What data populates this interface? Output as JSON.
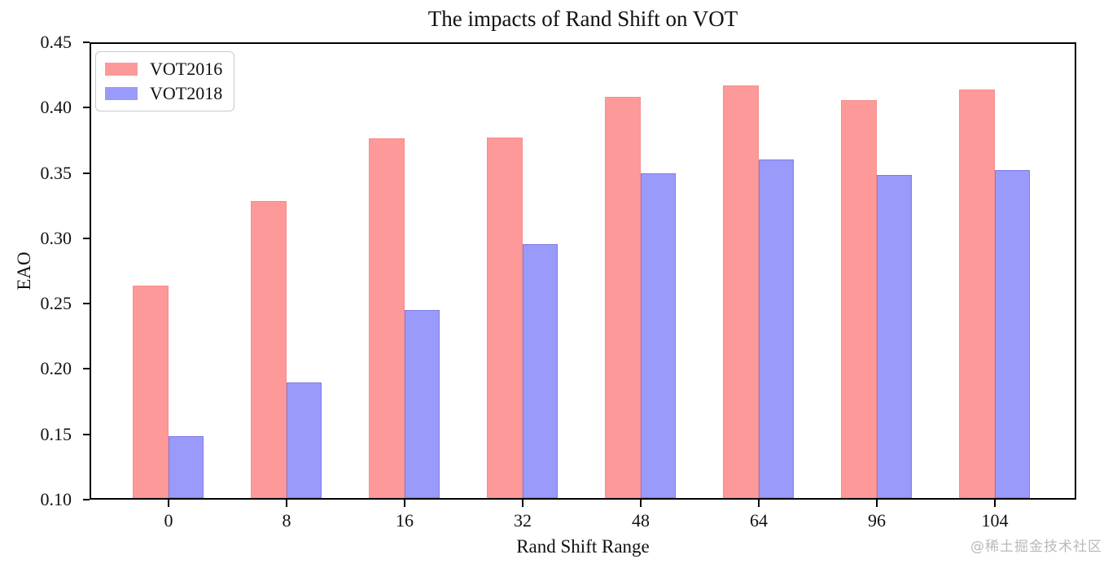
{
  "chart_data": {
    "type": "bar",
    "title": "The impacts of Rand Shift on VOT",
    "xlabel": "Rand Shift Range",
    "ylabel": "EAO",
    "categories": [
      "0",
      "8",
      "16",
      "32",
      "48",
      "64",
      "96",
      "104"
    ],
    "series": [
      {
        "name": "VOT2016",
        "color": "#fd9999",
        "values": [
          0.264,
          0.329,
          0.377,
          0.378,
          0.409,
          0.418,
          0.407,
          0.415
        ]
      },
      {
        "name": "VOT2018",
        "color": "#9a9afb",
        "values": [
          0.148,
          0.189,
          0.245,
          0.296,
          0.35,
          0.361,
          0.349,
          0.353
        ]
      }
    ],
    "ylim": [
      0.1,
      0.45
    ],
    "yticks": [
      "0.10",
      "0.15",
      "0.20",
      "0.25",
      "0.30",
      "0.35",
      "0.40",
      "0.45"
    ],
    "grid": false,
    "legend_position": "upper left"
  },
  "watermark": {
    "text": "@稀土掘金技术社区"
  }
}
